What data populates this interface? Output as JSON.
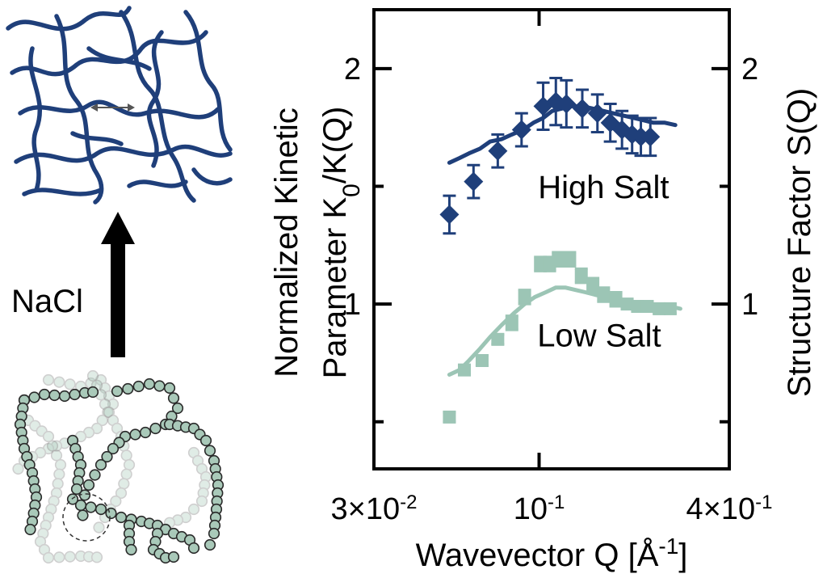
{
  "colors": {
    "high_salt": "#1f3f7a",
    "low_salt": "#9cc5b5",
    "axis": "#000000",
    "polymer_fill": "#a9c9b9"
  },
  "schematic": {
    "arrow_label": "NaCl"
  },
  "chart_data": {
    "type": "scatter",
    "xlabel_main": "Wavevector Q [Å",
    "xlabel_sup": "-1",
    "xlabel_end": "]",
    "ylabel_left_line1": "Normalized Kinetic",
    "ylabel_left_line2_pre": "Parameter K",
    "ylabel_left_line2_sub": "0",
    "ylabel_left_line2_post": "/K(Q)",
    "ylabel_right": "Structure Factor S(Q)",
    "x_scale": "log",
    "xlim": [
      0.03,
      0.4
    ],
    "ylim": [
      0.3,
      2.25
    ],
    "x_ticks": [
      {
        "value": 0.03,
        "mant": "3×10",
        "exp": "-2"
      },
      {
        "value": 0.1,
        "mant": "10",
        "exp": "-1"
      },
      {
        "value": 0.4,
        "mant": "4×10",
        "exp": "-1"
      }
    ],
    "y_ticks_left": [
      {
        "value": 1,
        "label": "1"
      },
      {
        "value": 2,
        "label": "2"
      }
    ],
    "y_ticks_right": [
      {
        "value": 1,
        "label": "1"
      },
      {
        "value": 2,
        "label": "2"
      }
    ],
    "y_minor_ticks": [
      0.5,
      1.5
    ],
    "annotations": [
      {
        "text": "High Salt",
        "x": 0.16,
        "y": 1.45
      },
      {
        "text": "Low Salt",
        "x": 0.155,
        "y": 0.82
      }
    ],
    "series": [
      {
        "name": "High Salt",
        "style": "points",
        "marker": "diamond",
        "x": [
          0.052,
          0.062,
          0.074,
          0.088,
          0.103,
          0.113,
          0.122,
          0.137,
          0.153,
          0.168,
          0.183,
          0.197,
          0.21,
          0.225
        ],
        "y": [
          1.38,
          1.52,
          1.65,
          1.74,
          1.84,
          1.86,
          1.85,
          1.83,
          1.81,
          1.77,
          1.74,
          1.72,
          1.71,
          1.71
        ],
        "yerr": [
          0.08,
          0.07,
          0.07,
          0.07,
          0.1,
          0.1,
          0.1,
          0.08,
          0.08,
          0.08,
          0.08,
          0.08,
          0.08,
          0.08
        ]
      },
      {
        "name": "High Salt S(Q)",
        "style": "line",
        "x": [
          0.052,
          0.056,
          0.06,
          0.065,
          0.07,
          0.076,
          0.082,
          0.089,
          0.096,
          0.103,
          0.11,
          0.118,
          0.127,
          0.137,
          0.148,
          0.16,
          0.172,
          0.185,
          0.2,
          0.215,
          0.23,
          0.25,
          0.27
        ],
        "y": [
          1.6,
          1.62,
          1.64,
          1.66,
          1.69,
          1.7,
          1.72,
          1.74,
          1.77,
          1.79,
          1.82,
          1.83,
          1.84,
          1.84,
          1.83,
          1.82,
          1.81,
          1.8,
          1.79,
          1.78,
          1.77,
          1.77,
          1.76
        ]
      },
      {
        "name": "Low Salt",
        "style": "points",
        "marker": "square",
        "x": [
          0.052,
          0.058,
          0.066,
          0.074,
          0.082,
          0.09,
          0.101,
          0.108,
          0.115,
          0.125,
          0.136,
          0.148,
          0.16,
          0.175,
          0.19,
          0.205,
          0.22,
          0.24,
          0.26
        ],
        "y": [
          0.52,
          0.72,
          0.76,
          0.85,
          0.92,
          1.03,
          1.17,
          1.17,
          1.19,
          1.19,
          1.12,
          1.08,
          1.04,
          1.02,
          1.0,
          0.99,
          0.99,
          0.98,
          0.98
        ],
        "yerr": [
          0.02,
          0.02,
          0.02,
          0.02,
          0.03,
          0.03,
          0.03,
          0.03,
          0.03,
          0.03,
          0.03,
          0.03,
          0.03,
          0.03,
          0.02,
          0.02,
          0.02,
          0.02,
          0.02
        ]
      },
      {
        "name": "Low Salt S(Q)",
        "style": "line",
        "x": [
          0.052,
          0.056,
          0.06,
          0.065,
          0.07,
          0.076,
          0.083,
          0.09,
          0.097,
          0.105,
          0.113,
          0.121,
          0.13,
          0.14,
          0.15,
          0.162,
          0.175,
          0.19,
          0.205,
          0.22,
          0.24,
          0.26,
          0.28
        ],
        "y": [
          0.7,
          0.72,
          0.76,
          0.81,
          0.86,
          0.91,
          0.96,
          1.0,
          1.03,
          1.05,
          1.07,
          1.07,
          1.06,
          1.05,
          1.04,
          1.03,
          1.02,
          1.01,
          1.0,
          1.0,
          0.99,
          0.99,
          0.98
        ]
      }
    ]
  }
}
